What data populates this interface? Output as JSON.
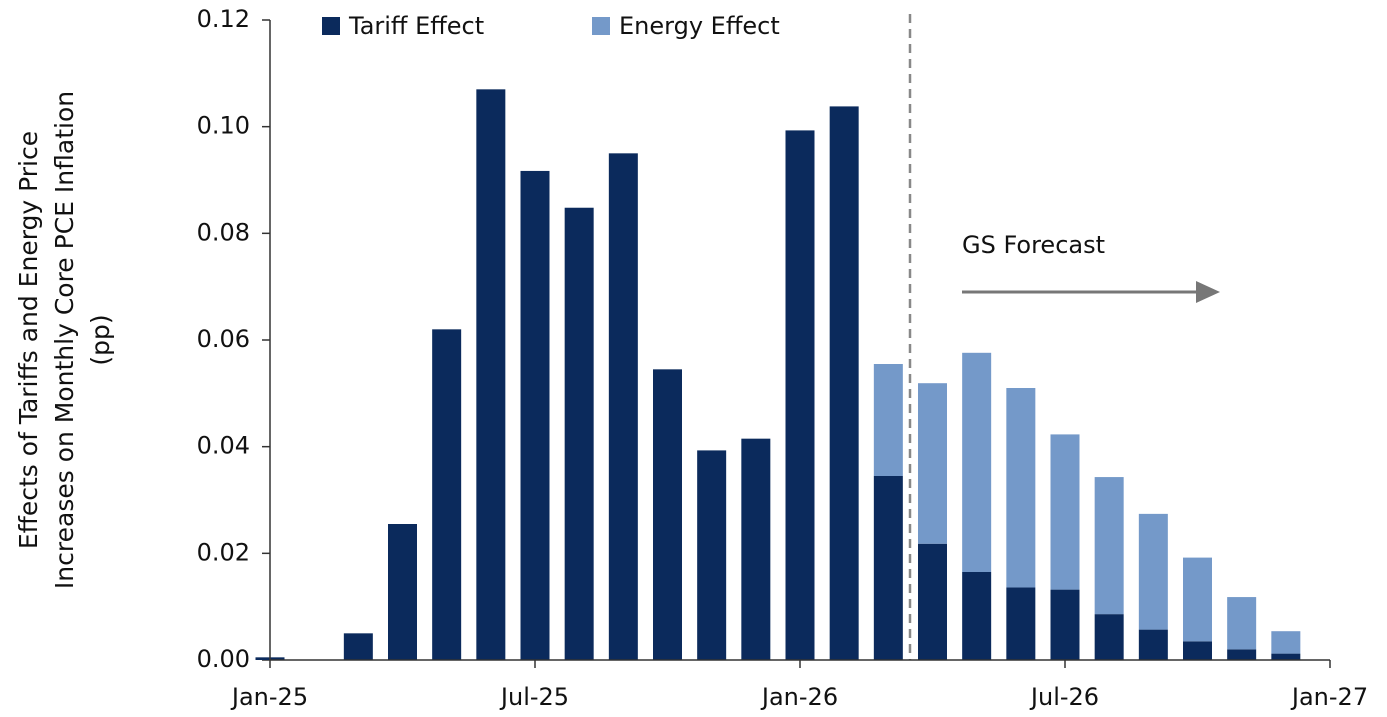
{
  "chart_data": {
    "type": "bar",
    "stacked": true,
    "y_label": [
      "Effects of Tariffs and Energy Price",
      "Increases on Monthly Core PCE Inflation",
      "(pp)"
    ],
    "categories": [
      "Jan-25",
      null,
      null,
      null,
      null,
      null,
      "Jul-25",
      null,
      null,
      null,
      null,
      null,
      "Jan-26",
      null,
      null,
      null,
      null,
      null,
      "Jul-26",
      null,
      null,
      null,
      null,
      null,
      "Jan-27"
    ],
    "series": [
      {
        "name": "Tariff Effect",
        "color": "#0b2a5c",
        "values": [
          0.0005,
          null,
          0.005,
          0.0255,
          0.062,
          0.107,
          0.0917,
          0.0848,
          0.095,
          0.0545,
          0.0393,
          0.0415,
          0.0993,
          0.1038,
          0.0345,
          0.0218,
          0.0165,
          0.0136,
          0.0132,
          0.0086,
          0.0057,
          0.0035,
          0.002,
          0.0012,
          null
        ]
      },
      {
        "name": "Energy Effect",
        "color": "#7499c9",
        "values": [
          null,
          null,
          null,
          null,
          null,
          null,
          null,
          null,
          null,
          null,
          null,
          null,
          null,
          null,
          0.021,
          0.0301,
          0.0411,
          0.0374,
          0.0291,
          0.0257,
          0.0217,
          0.0157,
          0.0098,
          0.0042,
          null
        ]
      }
    ],
    "annotation": "GS Forecast",
    "ylim": [
      0,
      0.12
    ],
    "yticks": [
      {
        "value": 0,
        "label": "0.00"
      },
      {
        "value": 0.02,
        "label": "0.02"
      },
      {
        "value": 0.04,
        "label": "0.04"
      },
      {
        "value": 0.06,
        "label": "0.06"
      },
      {
        "value": 0.08,
        "label": "0.08"
      },
      {
        "value": 0.1,
        "label": "0.10"
      },
      {
        "value": 0.12,
        "label": "0.12"
      }
    ],
    "legend": "top"
  }
}
